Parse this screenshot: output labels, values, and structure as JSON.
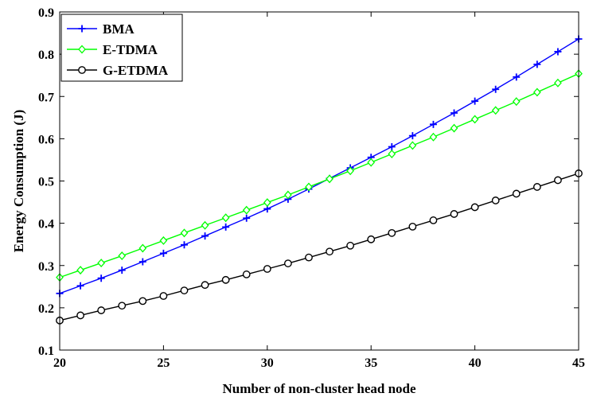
{
  "chart_data": {
    "type": "line",
    "xlabel": "Number of non-cluster head node",
    "ylabel": "Energy Consumption (J)",
    "xlim": [
      20,
      45
    ],
    "ylim": [
      0.1,
      0.9
    ],
    "xticks": [
      20,
      25,
      30,
      35,
      40,
      45
    ],
    "yticks": [
      0.1,
      0.2,
      0.3,
      0.4,
      0.5,
      0.6,
      0.7,
      0.8,
      0.9
    ],
    "grid": false,
    "legend_position": "top-left",
    "x": [
      20,
      21,
      22,
      23,
      24,
      25,
      26,
      27,
      28,
      29,
      30,
      31,
      32,
      33,
      34,
      35,
      36,
      37,
      38,
      39,
      40,
      41,
      42,
      43,
      44,
      45
    ],
    "series": [
      {
        "name": "BMA",
        "color": "#0000ff",
        "marker": "plus",
        "values": [
          0.234,
          0.252,
          0.27,
          0.289,
          0.309,
          0.329,
          0.349,
          0.37,
          0.391,
          0.412,
          0.434,
          0.457,
          0.481,
          0.506,
          0.531,
          0.556,
          0.581,
          0.607,
          0.634,
          0.661,
          0.689,
          0.717,
          0.746,
          0.776,
          0.806,
          0.836
        ]
      },
      {
        "name": "E-TDMA",
        "color": "#00ff00",
        "marker": "diamond",
        "values": [
          0.272,
          0.289,
          0.306,
          0.323,
          0.341,
          0.359,
          0.377,
          0.395,
          0.413,
          0.431,
          0.449,
          0.467,
          0.486,
          0.505,
          0.524,
          0.544,
          0.564,
          0.584,
          0.604,
          0.625,
          0.646,
          0.667,
          0.688,
          0.71,
          0.732,
          0.754
        ]
      },
      {
        "name": "G-ETDMA",
        "color": "#000000",
        "marker": "circle",
        "values": [
          0.17,
          0.182,
          0.194,
          0.205,
          0.216,
          0.228,
          0.241,
          0.254,
          0.266,
          0.279,
          0.292,
          0.305,
          0.319,
          0.333,
          0.347,
          0.362,
          0.377,
          0.392,
          0.407,
          0.422,
          0.438,
          0.454,
          0.47,
          0.486,
          0.502,
          0.518
        ]
      }
    ]
  }
}
